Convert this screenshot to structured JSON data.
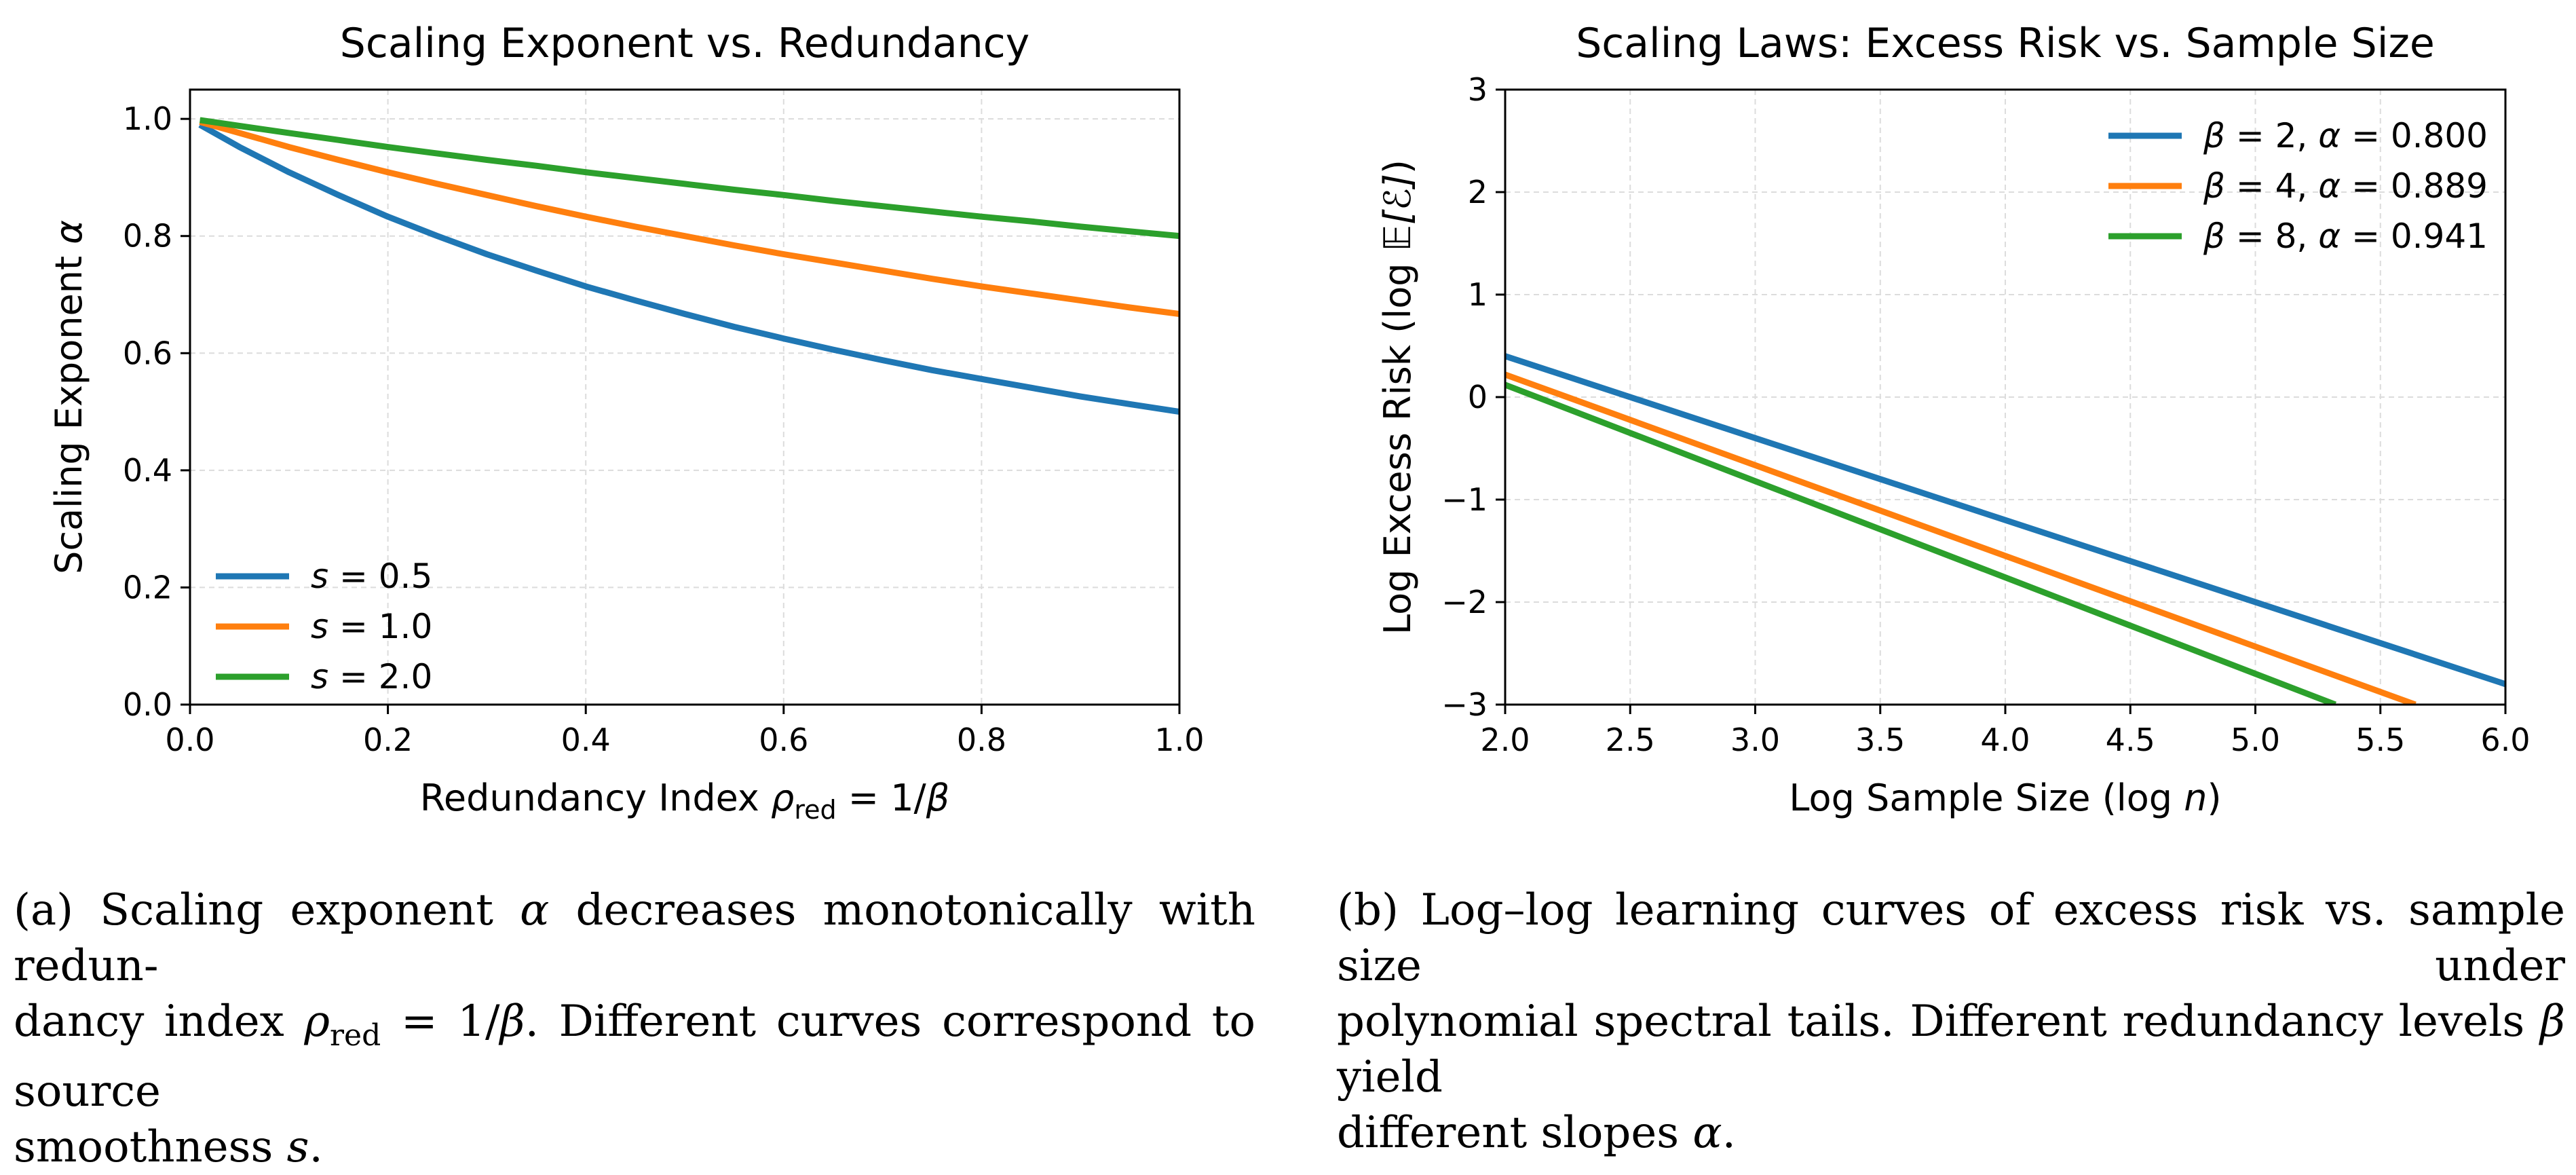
{
  "chart_data": [
    {
      "type": "line",
      "title": "Scaling Exponent vs. Redundancy",
      "xlabel": {
        "prefix": "Redundancy Index ",
        "sym": "ρ",
        "sub": "red",
        "suffix": " = 1/",
        "sym2": "β"
      },
      "ylabel": {
        "prefix": "Scaling Exponent ",
        "sym": "α"
      },
      "xlim": [
        0.0,
        1.0
      ],
      "ylim": [
        0.0,
        1.05
      ],
      "xticks": [
        "0.0",
        "0.2",
        "0.4",
        "0.6",
        "0.8",
        "1.0"
      ],
      "yticks": [
        "0.0",
        "0.2",
        "0.4",
        "0.6",
        "0.8",
        "1.0"
      ],
      "grid": true,
      "legend_position": "lower-left",
      "x": [
        0.01,
        0.05,
        0.1,
        0.15,
        0.2,
        0.25,
        0.3,
        0.35,
        0.4,
        0.45,
        0.5,
        0.55,
        0.6,
        0.65,
        0.7,
        0.75,
        0.8,
        0.85,
        0.9,
        0.95,
        1.0
      ],
      "series": [
        {
          "name": "s = 0.5",
          "label_sym": "s",
          "label_val": " = 0.5",
          "color": "#1f77b4",
          "values": [
            0.99,
            0.952,
            0.909,
            0.87,
            0.833,
            0.8,
            0.769,
            0.741,
            0.714,
            0.69,
            0.667,
            0.645,
            0.625,
            0.606,
            0.588,
            0.571,
            0.556,
            0.541,
            0.526,
            0.513,
            0.5
          ]
        },
        {
          "name": "s = 1.0",
          "label_sym": "s",
          "label_val": " = 1.0",
          "color": "#ff7f0e",
          "values": [
            0.995,
            0.976,
            0.952,
            0.93,
            0.909,
            0.889,
            0.87,
            0.851,
            0.833,
            0.816,
            0.8,
            0.784,
            0.769,
            0.755,
            0.741,
            0.727,
            0.714,
            0.702,
            0.69,
            0.678,
            0.667
          ]
        },
        {
          "name": "s = 2.0",
          "label_sym": "s",
          "label_val": " = 2.0",
          "color": "#2ca02c",
          "values": [
            0.998,
            0.988,
            0.976,
            0.964,
            0.952,
            0.941,
            0.93,
            0.92,
            0.909,
            0.899,
            0.889,
            0.879,
            0.87,
            0.86,
            0.851,
            0.842,
            0.833,
            0.825,
            0.816,
            0.808,
            0.8
          ]
        }
      ]
    },
    {
      "type": "line",
      "title": "Scaling Laws: Excess Risk vs. Sample Size",
      "xlabel": {
        "prefix": "Log Sample Size (log ",
        "sym": "n",
        "suffix": ")"
      },
      "ylabel": {
        "prefix": "Log Excess Risk (log ",
        "sym": "𝔼[ℰ]",
        "suffix": ")"
      },
      "xlim": [
        2.0,
        6.0
      ],
      "ylim": [
        -3,
        3
      ],
      "xticks": [
        "2.0",
        "2.5",
        "3.0",
        "3.5",
        "4.0",
        "4.5",
        "5.0",
        "5.5",
        "6.0"
      ],
      "yticks": [
        "−3",
        "−2",
        "−1",
        "0",
        "1",
        "2",
        "3"
      ],
      "grid": true,
      "legend_position": "top-right",
      "series": [
        {
          "name": "β = 2, α = 0.800",
          "label_parts": [
            "β",
            " = 2, ",
            "α",
            " = 0.800"
          ],
          "color": "#1f77b4",
          "x": [
            2.0,
            6.0
          ],
          "values": [
            0.4,
            -2.8
          ]
        },
        {
          "name": "β = 4, α = 0.889",
          "label_parts": [
            "β",
            " = 4, ",
            "α",
            " = 0.889"
          ],
          "color": "#ff7f0e",
          "x": [
            2.0,
            5.64
          ],
          "values": [
            0.22,
            -3.0
          ]
        },
        {
          "name": "β = 8, α = 0.941",
          "label_parts": [
            "β",
            " = 8, ",
            "α",
            " = 0.941"
          ],
          "color": "#2ca02c",
          "x": [
            2.0,
            5.32
          ],
          "values": [
            0.12,
            -3.0
          ]
        }
      ]
    }
  ],
  "captions": {
    "a": {
      "line1_prefix": "(a) Scaling exponent ",
      "line1_sym": "α",
      "line1_suffix": " decreases monotonically with redun-",
      "line2_prefix": "dancy index ",
      "line2_sym": "ρ",
      "line2_sub": "red",
      "line2_mid": " = 1/",
      "line2_sym2": "β",
      "line2_suffix": ". Different curves correspond to source",
      "line3_prefix": "smoothness ",
      "line3_sym": "s",
      "line3_suffix": "."
    },
    "b": {
      "line1": "(b) Log–log learning curves of excess risk vs. sample size under",
      "line2_prefix": "polynomial spectral tails. Different redundancy levels ",
      "line2_sym": "β",
      "line2_suffix": " yield",
      "line3_prefix": "different slopes ",
      "line3_sym": "α",
      "line3_suffix": "."
    }
  }
}
